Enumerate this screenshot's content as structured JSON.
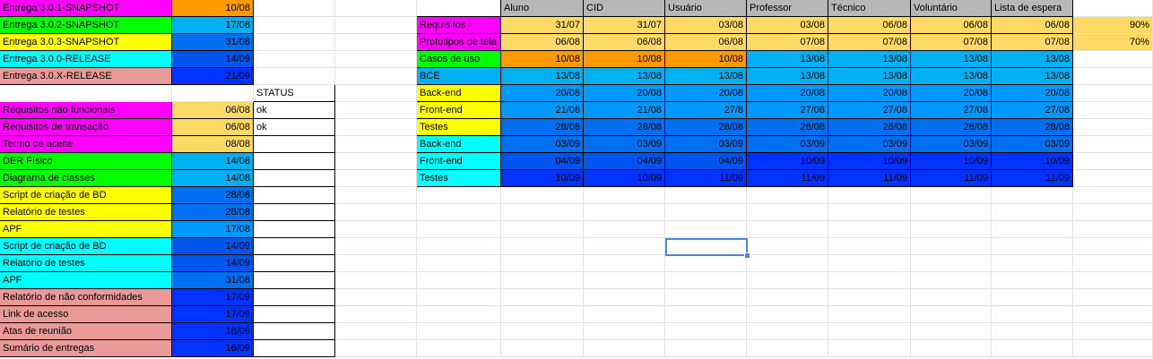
{
  "colors": {
    "magenta": "#ff00ff",
    "green": "#00ff00",
    "yellow": "#ffff00",
    "cyan": "#00ffff",
    "pink": "#ea9999",
    "orange": "#ff9900",
    "peach": "#ffd966",
    "lightblue": "#00b0f0",
    "blue1": "#0099ff",
    "blue2": "#0070f0",
    "blue3": "#0055ee",
    "blue4": "#0033ff",
    "gray": "#b7b7b7",
    "white": "#ffffff"
  },
  "releases": [
    {
      "label": "Entrega 3.0.1-SNAPSHOT",
      "date": "10/08"
    },
    {
      "label": "Entrega 3.0.2-SNAPSHOT",
      "date": "17/08"
    },
    {
      "label": "Entrega 3.0.3-SNAPSHOT",
      "date": "31/08"
    },
    {
      "label": "Entrega 3.0.0-RELEASE",
      "date": "14/09"
    },
    {
      "label": "Entrega 3.0.X-RELEASE",
      "date": "21/09"
    }
  ],
  "status_header": "STATUS",
  "deliverables": [
    {
      "label": "Requisitos não funcionais",
      "date": "06/08",
      "status": "ok"
    },
    {
      "label": "Requisitos de transação",
      "date": "06/08",
      "status": "ok"
    },
    {
      "label": "Termo de aceite",
      "date": "08/08",
      "status": ""
    },
    {
      "label": "DER Físico",
      "date": "14/08",
      "status": ""
    },
    {
      "label": "Diagrama de classes",
      "date": "14/08",
      "status": ""
    },
    {
      "label": "Script de criação de BD",
      "date": "28/08",
      "status": ""
    },
    {
      "label": "Relatório de testes",
      "date": "28/08",
      "status": ""
    },
    {
      "label": "APF",
      "date": "17/08",
      "status": ""
    },
    {
      "label": "Script de criação de BD",
      "date": "14/09",
      "status": ""
    },
    {
      "label": "Relatório de testes",
      "date": "14/09",
      "status": ""
    },
    {
      "label": "APF",
      "date": "31/08",
      "status": ""
    },
    {
      "label": "Relatório de não conformidades",
      "date": "17/09",
      "status": ""
    },
    {
      "label": "Link de acesso",
      "date": "17/09",
      "status": ""
    },
    {
      "label": "Atas de reunião",
      "date": "18/09",
      "status": ""
    },
    {
      "label": "Sumário de entregas",
      "date": "16/09",
      "status": ""
    }
  ],
  "schedule": {
    "columns": [
      "Aluno",
      "CID",
      "Usuário",
      "Professor",
      "Técnico",
      "Voluntário",
      "Lista de espera"
    ],
    "rows": [
      {
        "label": "Requisitos",
        "values": [
          "31/07",
          "31/07",
          "03/08",
          "03/08",
          "06/08",
          "06/08",
          "06/08"
        ],
        "extra": "90%"
      },
      {
        "label": "Prototipos de tela",
        "values": [
          "06/08",
          "06/08",
          "06/08",
          "07/08",
          "07/08",
          "07/08",
          "07/08"
        ],
        "extra": "70%"
      },
      {
        "label": "Casos de uso",
        "values": [
          "10/08",
          "10/08",
          "10/08",
          "13/08",
          "13/08",
          "13/08",
          "13/08"
        ],
        "extra": ""
      },
      {
        "label": "BCE",
        "values": [
          "13/08",
          "13/08",
          "13/08",
          "13/08",
          "13/08",
          "13/08",
          "13/08"
        ],
        "extra": ""
      },
      {
        "label": "Back-end",
        "values": [
          "20/08",
          "20/08",
          "20/08",
          "20/08",
          "20/08",
          "20/08",
          "20/08"
        ],
        "extra": ""
      },
      {
        "label": "Front-end",
        "values": [
          "21/08",
          "21/08",
          "27/8",
          "27/08",
          "27/08",
          "27/08",
          "27/08"
        ],
        "extra": ""
      },
      {
        "label": "Testes",
        "values": [
          "28/08",
          "28/08",
          "28/08",
          "28/08",
          "28/08",
          "28/08",
          "28/08"
        ],
        "extra": ""
      },
      {
        "label": "Back-end",
        "values": [
          "03/09",
          "03/09",
          "03/09",
          "03/09",
          "03/09",
          "03/09",
          "03/09"
        ],
        "extra": ""
      },
      {
        "label": "Front-end",
        "values": [
          "04/09",
          "04/09",
          "04/09",
          "10/09",
          "10/09",
          "10/09",
          "10/09"
        ],
        "extra": ""
      },
      {
        "label": "Testes",
        "values": [
          "10/09",
          "10/09",
          "11/09",
          "11/09",
          "11/09",
          "11/09",
          "11/09"
        ],
        "extra": ""
      }
    ]
  }
}
